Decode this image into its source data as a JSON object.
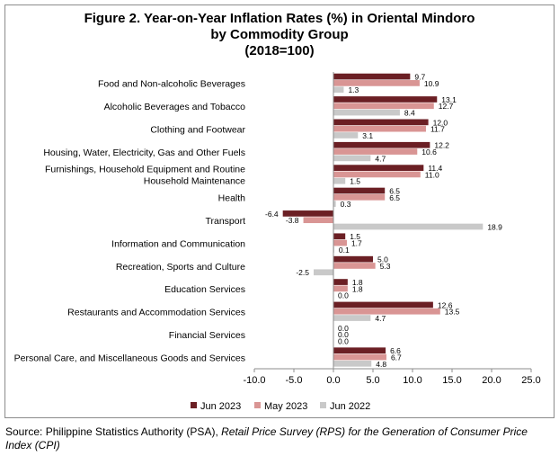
{
  "chart_data": {
    "type": "bar",
    "orientation": "horizontal",
    "title": "Figure 2. Year-on-Year Inflation Rates (%) in Oriental Mindoro",
    "subtitle": [
      "by Commodity Group",
      "(2018=100)"
    ],
    "categories": [
      "Food and Non-alcoholic Beverages",
      "Alcoholic Beverages and Tobacco",
      "Clothing and Footwear",
      "Housing, Water, Electricity, Gas and Other Fuels",
      [
        "Furnishings, Household Equipment and Routine",
        "Household Maintenance"
      ],
      "Health",
      "Transport",
      "Information and Communication",
      "Recreation, Sports and Culture",
      "Education Services",
      "Restaurants and Accommodation Services",
      "Financial Services",
      "Personal Care, and Miscellaneous Goods and Services"
    ],
    "series": [
      {
        "name": "Jun 2023",
        "color": "#6b1f24",
        "values": [
          9.7,
          13.1,
          12.0,
          12.2,
          11.4,
          6.5,
          -6.4,
          1.5,
          5.0,
          1.8,
          12.6,
          0.0,
          6.6
        ]
      },
      {
        "name": "May 2023",
        "color": "#d99594",
        "values": [
          10.9,
          12.7,
          11.7,
          10.6,
          11.0,
          6.5,
          -3.8,
          1.7,
          5.3,
          1.8,
          13.5,
          0.0,
          6.7
        ]
      },
      {
        "name": "Jun 2022",
        "color": "#c9c9c9",
        "values": [
          1.3,
          8.4,
          3.1,
          4.7,
          1.5,
          0.3,
          18.9,
          0.1,
          -2.5,
          0.0,
          4.7,
          0.0,
          4.8
        ]
      }
    ],
    "xlim": [
      -10,
      25
    ],
    "xticks": [
      "-10.0",
      "-5.0",
      "0.0",
      "5.0",
      "10.0",
      "15.0",
      "20.0",
      "25.0"
    ],
    "legend_position": "bottom",
    "grid": false
  },
  "source": {
    "prefix": "Source: Philippine Statistics Authority (PSA), ",
    "italic": "Retail Price Survey (RPS) for the Generation of Consumer Price Index (CPI)"
  }
}
